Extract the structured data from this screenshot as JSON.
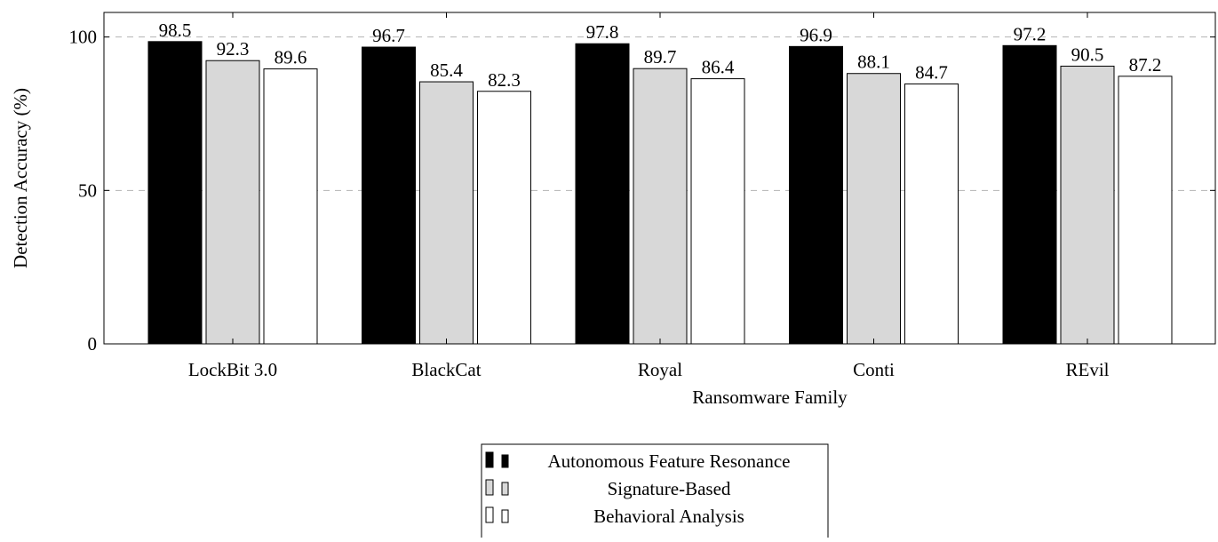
{
  "chart_data": {
    "type": "bar",
    "title": "",
    "xlabel": "Ransomware Family",
    "ylabel": "Detection Accuracy (%)",
    "ylim": [
      0,
      108
    ],
    "yticks": [
      0,
      50,
      100
    ],
    "grid": "horizontal dashed at 50 and 100",
    "legend_position": "bottom-center",
    "categories": [
      "LockBit 3.0",
      "BlackCat",
      "Royal",
      "Conti",
      "REvil"
    ],
    "series": [
      {
        "name": "Autonomous Feature Resonance",
        "values": [
          98.5,
          96.7,
          97.8,
          96.9,
          97.2
        ],
        "color": "#000000"
      },
      {
        "name": "Signature-Based",
        "values": [
          92.3,
          85.4,
          89.7,
          88.1,
          90.5
        ],
        "color": "#d8d8d8"
      },
      {
        "name": "Behavioral Analysis",
        "values": [
          89.6,
          82.3,
          86.4,
          84.7,
          87.2
        ],
        "color": "#ffffff"
      }
    ]
  }
}
